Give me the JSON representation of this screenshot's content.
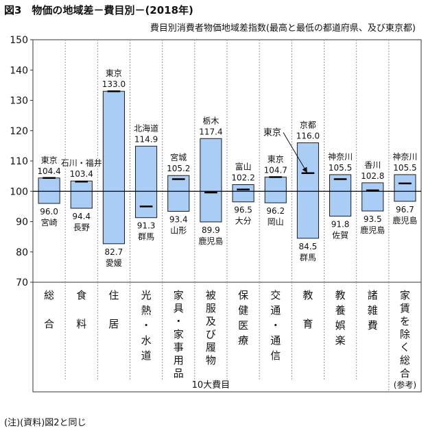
{
  "title": "図3　物価の地域差－費目別－(2018年)",
  "subtitle": "費目別消費者物価地域差指数(最高と最低の都道府県、及び東京都)",
  "note": "(注)(資料)図2と同じ",
  "colors": {
    "bar_fill": "#a9cdf5",
    "bar_stroke": "#1a1a1a",
    "baseline": "#000000",
    "grid": "#999999"
  },
  "chart_data": {
    "type": "bar",
    "subtype": "floating-range",
    "ylim": [
      70,
      150
    ],
    "yticks": [
      70,
      80,
      90,
      100,
      110,
      120,
      130,
      140,
      150
    ],
    "baseline": 100,
    "group_label": "10大費目",
    "categories": [
      {
        "label": "総合",
        "high": 104.4,
        "high_pref": "東京",
        "low": 96.0,
        "low_pref": "宮崎",
        "tokyo": 104.4
      },
      {
        "label": "食料",
        "high": 103.4,
        "high_pref": "石川・福井",
        "low": 94.4,
        "low_pref": "長野",
        "tokyo": 103.2
      },
      {
        "label": "住居",
        "high": 133.0,
        "high_pref": "東京",
        "low": 82.7,
        "low_pref": "愛媛",
        "tokyo": 133.0
      },
      {
        "label": "光熱・水道",
        "high": 114.9,
        "high_pref": "北海道",
        "low": 91.3,
        "low_pref": "群馬",
        "tokyo": 95.0
      },
      {
        "label": "家具・家事用品",
        "high": 105.2,
        "high_pref": "宮城",
        "low": 93.4,
        "low_pref": "山形",
        "tokyo": 104.0
      },
      {
        "label": "被服及び履物",
        "high": 117.4,
        "high_pref": "栃木",
        "low": 89.9,
        "low_pref": "鹿児島",
        "tokyo": 99.6
      },
      {
        "label": "保健医療",
        "high": 102.2,
        "high_pref": "富山",
        "low": 96.5,
        "low_pref": "大分",
        "tokyo": 100.6
      },
      {
        "label": "交通・通信",
        "high": 104.7,
        "high_pref": "東京",
        "low": 96.2,
        "low_pref": "岡山",
        "tokyo": 104.7
      },
      {
        "label": "教育",
        "high": 116.0,
        "high_pref": "京都",
        "low": 84.5,
        "low_pref": "群馬",
        "tokyo": 106.0
      },
      {
        "label": "教養娯楽",
        "high": 105.5,
        "high_pref": "神奈川",
        "low": 91.8,
        "low_pref": "佐賀",
        "tokyo": 104.0
      },
      {
        "label": "諸雑費",
        "high": 102.8,
        "high_pref": "香川",
        "low": 93.5,
        "low_pref": "鹿児島",
        "tokyo": 100.3
      },
      {
        "label": "家賃を除く総合",
        "sub": "(参考)",
        "high": 105.5,
        "high_pref": "神奈川",
        "low": 96.7,
        "low_pref": "鹿児島",
        "tokyo": 102.6
      }
    ],
    "annotations": [
      {
        "text": "東京",
        "category_index": 8
      }
    ]
  }
}
